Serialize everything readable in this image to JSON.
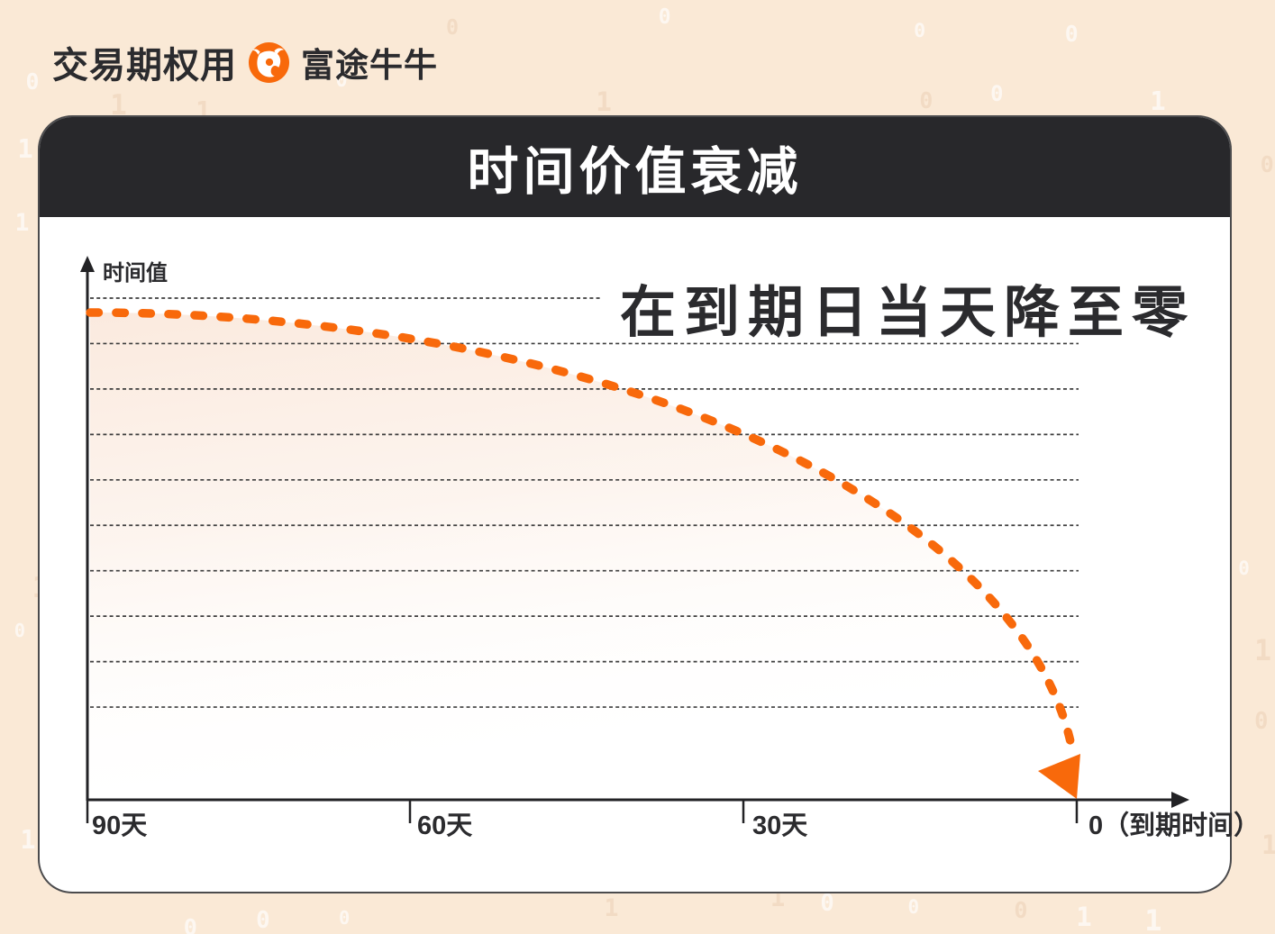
{
  "page": {
    "background_color": "#FAE9D6"
  },
  "header": {
    "title_prefix": "交易期权用",
    "brand": "富途牛牛",
    "logo": "futubull-bull-icon"
  },
  "card": {
    "title": "时间价值衰减",
    "header_bg": "#28282B",
    "body_bg": "#FFFFFF"
  },
  "chart_data": {
    "type": "line",
    "title": "时间价值衰减",
    "y_axis_label": "时间值",
    "x_tick_labels": [
      "90天",
      "60天",
      "30天",
      "0（到期时间）"
    ],
    "x_days_to_expiry": [
      90,
      60,
      30,
      0
    ],
    "series": [
      {
        "name": "时间值",
        "color": "#F8690B",
        "line_style": "dashed-rounded",
        "values_normalized": [
          1.0,
          0.95,
          0.75,
          0.0
        ]
      }
    ],
    "annotation": "在到期日当天降至零",
    "curve_shape": "quarter-ellipse decay: flat far from expiry, accelerating drop to zero at expiration",
    "grid": "horizontal dotted lines, 10 lines",
    "legend": "none",
    "ylim": [
      0,
      1
    ]
  },
  "colors": {
    "accent_orange": "#F8690B",
    "ink": "#222225",
    "text_dark": "#2B2B2E",
    "grid_line": "#3D3D3D",
    "under_curve_fill_top": "#F7D9C4"
  },
  "background_pattern": {
    "glyphs": [
      "0",
      "1"
    ],
    "description": "faint scattered binary digits"
  }
}
